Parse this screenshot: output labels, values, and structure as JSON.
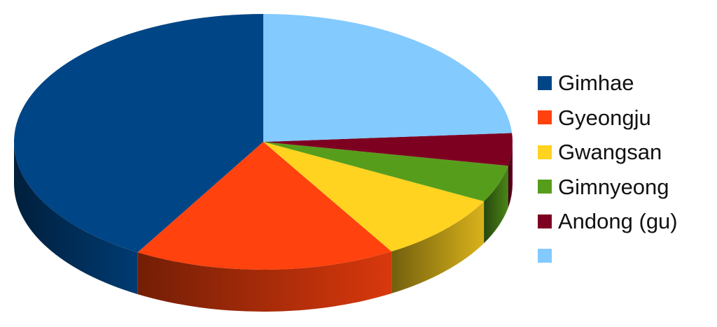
{
  "chart_data": {
    "type": "pie",
    "style": "3d",
    "title": "",
    "legend_position": "right",
    "start_angle_deg": 90,
    "direction": "counterclockwise",
    "slices": [
      {
        "label": "Gimhae",
        "value": 41.6,
        "color": "#004586"
      },
      {
        "label": "Gyeongju",
        "value": 17.0,
        "color": "#ff420e"
      },
      {
        "label": "Gwangsan",
        "value": 8.7,
        "color": "#ffd320"
      },
      {
        "label": "Gimnyeong",
        "value": 4.7,
        "color": "#579d1c"
      },
      {
        "label": "Andong (gu)",
        "value": 4.1,
        "color": "#7e0021"
      },
      {
        "label": "",
        "value": 23.9,
        "color": "#83caff"
      }
    ]
  }
}
